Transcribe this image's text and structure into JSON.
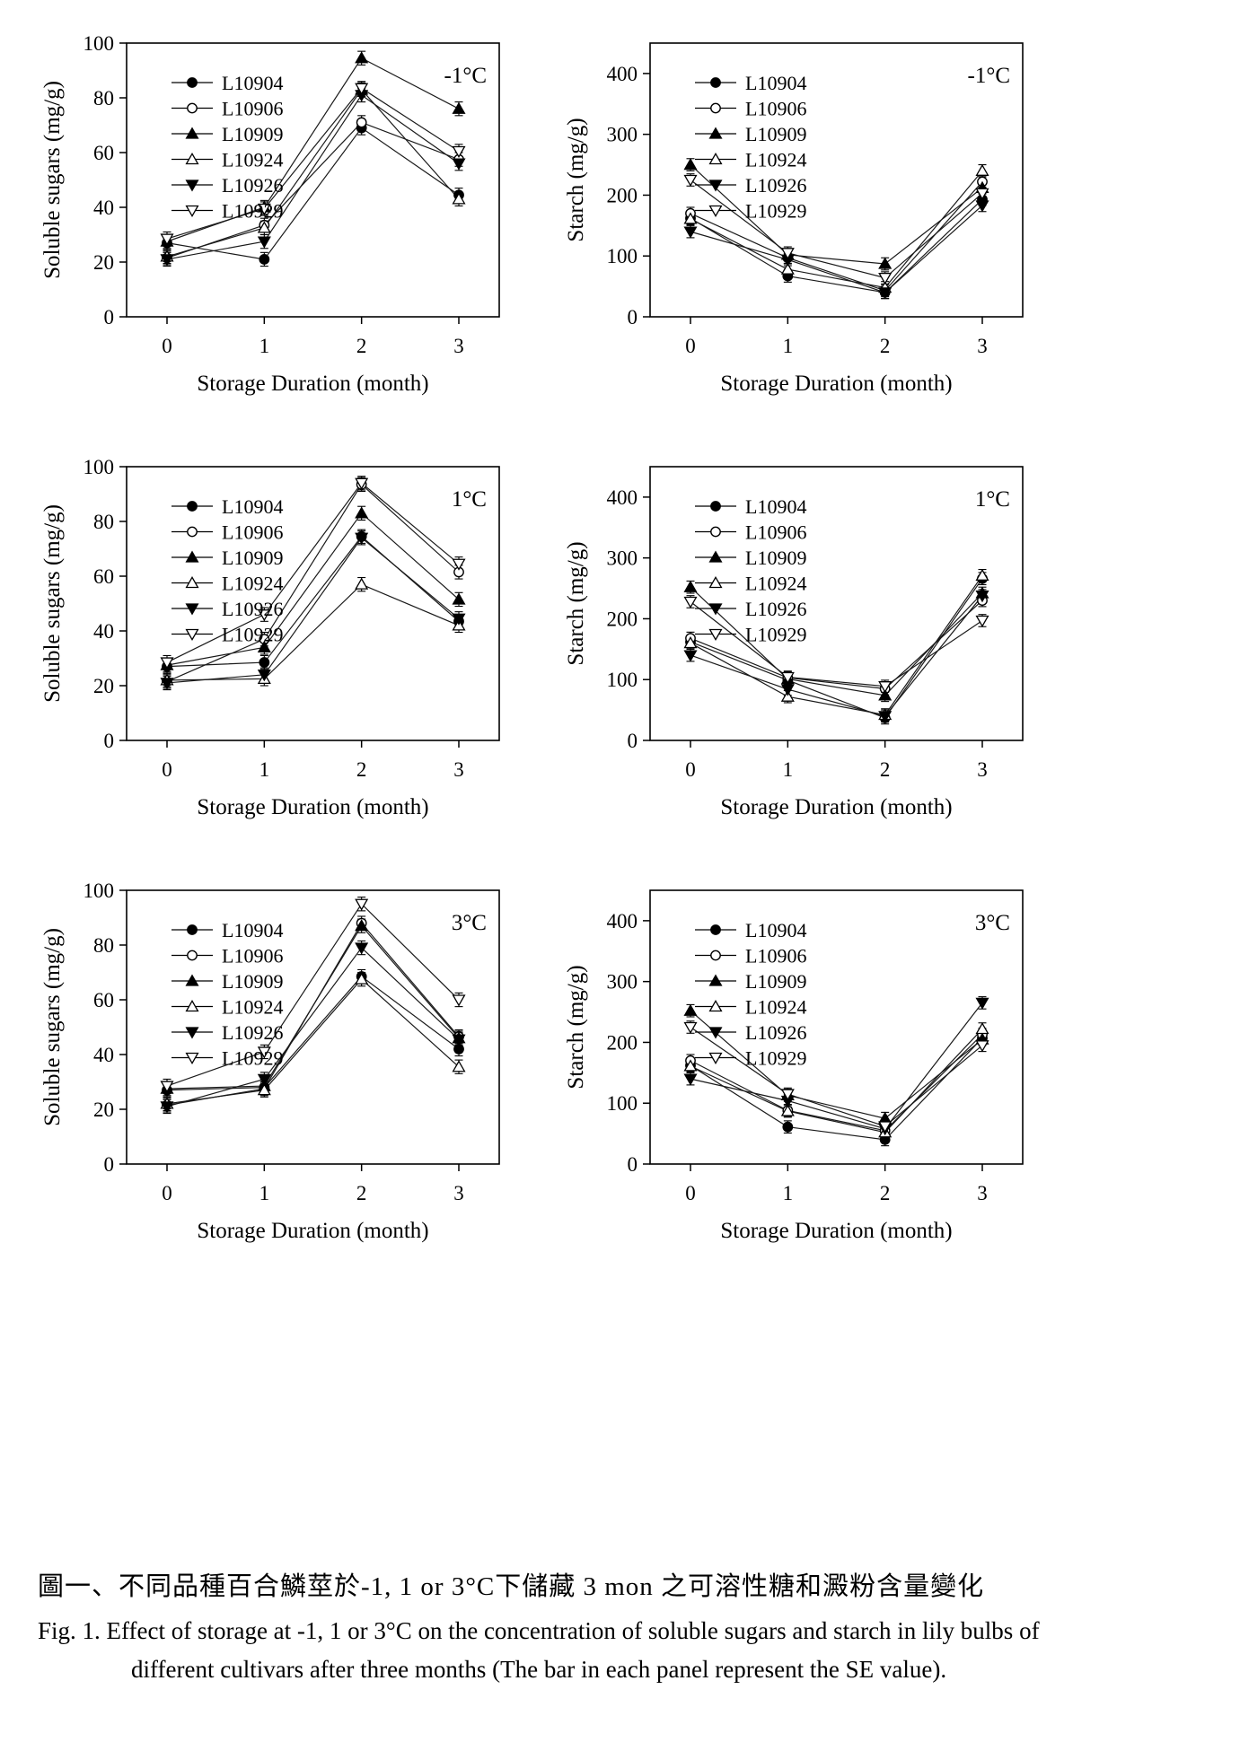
{
  "figure": {
    "caption_zh": "圖一、不同品種百合鱗莖於-1, 1 or 3°C下儲藏 3 mon 之可溶性糖和澱粉含量變化",
    "caption_en_line1": "Fig. 1. Effect of storage at -1, 1 or 3°C on the concentration of soluble sugars and starch in lily bulbs of",
    "caption_en_line2": "different cultivars after three months (The bar in each panel represent the SE value)."
  },
  "chart_data": [
    {
      "type": "line",
      "temperature_label": "-1°C",
      "xlabel": "Storage Duration (month)",
      "ylabel": "Soluble sugars (mg/g)",
      "x": [
        0,
        1,
        2,
        3
      ],
      "ylim": [
        0,
        100
      ],
      "yticks": [
        0,
        20,
        40,
        60,
        80,
        100
      ],
      "se": 2.5,
      "grid": false,
      "legend_position": "upper-left",
      "series": [
        {
          "name": "L10904",
          "marker": "filled-circle",
          "values": [
            27,
            21,
            69,
            44.5
          ]
        },
        {
          "name": "L10906",
          "marker": "open-circle",
          "values": [
            21.5,
            33.5,
            71,
            57.5
          ]
        },
        {
          "name": "L10909",
          "marker": "filled-triangle-up",
          "values": [
            27.5,
            40,
            94.5,
            76
          ]
        },
        {
          "name": "L10924",
          "marker": "open-triangle-up",
          "values": [
            22,
            32.5,
            83,
            43
          ]
        },
        {
          "name": "L10926",
          "marker": "filled-triangle-down",
          "values": [
            21,
            27.5,
            81,
            56
          ]
        },
        {
          "name": "L10929",
          "marker": "open-triangle-down",
          "values": [
            28.5,
            39.5,
            83.5,
            60.5
          ]
        }
      ]
    },
    {
      "type": "line",
      "temperature_label": "-1°C",
      "xlabel": "Storage Duration (month)",
      "ylabel": "Starch (mg/g)",
      "x": [
        0,
        1,
        2,
        3
      ],
      "ylim": [
        0,
        450
      ],
      "yticks": [
        0,
        100,
        200,
        300,
        400
      ],
      "se": 10,
      "grid": false,
      "legend_position": "upper-left",
      "series": [
        {
          "name": "L10904",
          "marker": "filled-circle",
          "values": [
            162,
            67,
            40,
            193
          ]
        },
        {
          "name": "L10906",
          "marker": "open-circle",
          "values": [
            170,
            97,
            43,
            222
          ]
        },
        {
          "name": "L10909",
          "marker": "filled-triangle-up",
          "values": [
            250,
            102,
            87,
            212
          ]
        },
        {
          "name": "L10924",
          "marker": "open-triangle-up",
          "values": [
            161,
            78,
            48,
            240
          ]
        },
        {
          "name": "L10926",
          "marker": "filled-triangle-down",
          "values": [
            140,
            94,
            40,
            183
          ]
        },
        {
          "name": "L10929",
          "marker": "open-triangle-down",
          "values": [
            225,
            105,
            64,
            203
          ]
        }
      ]
    },
    {
      "type": "line",
      "temperature_label": "1°C",
      "xlabel": "Storage Duration (month)",
      "ylabel": "Soluble sugars (mg/g)",
      "x": [
        0,
        1,
        2,
        3
      ],
      "ylim": [
        0,
        100
      ],
      "yticks": [
        0,
        20,
        40,
        60,
        80,
        100
      ],
      "se": 2.5,
      "grid": false,
      "legend_position": "upper-left",
      "series": [
        {
          "name": "L10904",
          "marker": "filled-circle",
          "values": [
            27,
            28.5,
            74.5,
            43.5
          ]
        },
        {
          "name": "L10906",
          "marker": "open-circle",
          "values": [
            21.5,
            37,
            93.5,
            61.5
          ]
        },
        {
          "name": "L10909",
          "marker": "filled-triangle-up",
          "values": [
            27.5,
            34,
            83,
            51.5
          ]
        },
        {
          "name": "L10924",
          "marker": "open-triangle-up",
          "values": [
            22,
            22.5,
            57,
            42
          ]
        },
        {
          "name": "L10926",
          "marker": "filled-triangle-down",
          "values": [
            21,
            24,
            74,
            44.5
          ]
        },
        {
          "name": "L10929",
          "marker": "open-triangle-down",
          "values": [
            28.5,
            46,
            94,
            64.5
          ]
        }
      ]
    },
    {
      "type": "line",
      "temperature_label": "1°C",
      "xlabel": "Storage Duration (month)",
      "ylabel": "Starch (mg/g)",
      "x": [
        0,
        1,
        2,
        3
      ],
      "ylim": [
        0,
        450
      ],
      "yticks": [
        0,
        100,
        200,
        300,
        400
      ],
      "se": 10,
      "grid": false,
      "legend_position": "upper-left",
      "series": [
        {
          "name": "L10904",
          "marker": "filled-circle",
          "values": [
            162,
            99,
            37,
            266
          ]
        },
        {
          "name": "L10906",
          "marker": "open-circle",
          "values": [
            168,
            103,
            85,
            230
          ]
        },
        {
          "name": "L10909",
          "marker": "filled-triangle-up",
          "values": [
            252,
            101,
            74,
            242
          ]
        },
        {
          "name": "L10924",
          "marker": "open-triangle-up",
          "values": [
            160,
            72,
            42,
            271
          ]
        },
        {
          "name": "L10926",
          "marker": "filled-triangle-down",
          "values": [
            140,
            84,
            40,
            238
          ]
        },
        {
          "name": "L10929",
          "marker": "open-triangle-down",
          "values": [
            228,
            104,
            89,
            197
          ]
        }
      ]
    },
    {
      "type": "line",
      "temperature_label": "3°C",
      "xlabel": "Storage Duration (month)",
      "ylabel": "Soluble sugars (mg/g)",
      "x": [
        0,
        1,
        2,
        3
      ],
      "ylim": [
        0,
        100
      ],
      "yticks": [
        0,
        20,
        40,
        60,
        80,
        100
      ],
      "se": 2.5,
      "grid": false,
      "legend_position": "upper-left",
      "series": [
        {
          "name": "L10904",
          "marker": "filled-circle",
          "values": [
            27,
            28,
            68.5,
            42
          ]
        },
        {
          "name": "L10906",
          "marker": "open-circle",
          "values": [
            21.5,
            27.5,
            88,
            46.5
          ]
        },
        {
          "name": "L10909",
          "marker": "filled-triangle-up",
          "values": [
            27.5,
            28.5,
            87,
            46
          ]
        },
        {
          "name": "L10924",
          "marker": "open-triangle-up",
          "values": [
            22,
            27,
            67.5,
            35.5
          ]
        },
        {
          "name": "L10926",
          "marker": "filled-triangle-down",
          "values": [
            21,
            31,
            79,
            45.5
          ]
        },
        {
          "name": "L10929",
          "marker": "open-triangle-down",
          "values": [
            28.5,
            41,
            95,
            60
          ]
        }
      ]
    },
    {
      "type": "line",
      "temperature_label": "3°C",
      "xlabel": "Storage Duration (month)",
      "ylabel": "Starch (mg/g)",
      "x": [
        0,
        1,
        2,
        3
      ],
      "ylim": [
        0,
        450
      ],
      "yticks": [
        0,
        100,
        200,
        300,
        400
      ],
      "se": 10,
      "grid": false,
      "legend_position": "upper-left",
      "series": [
        {
          "name": "L10904",
          "marker": "filled-circle",
          "values": [
            162,
            61,
            40,
            207
          ]
        },
        {
          "name": "L10906",
          "marker": "open-circle",
          "values": [
            170,
            88,
            55,
            213
          ]
        },
        {
          "name": "L10909",
          "marker": "filled-triangle-up",
          "values": [
            252,
            113,
            75,
            205
          ]
        },
        {
          "name": "L10924",
          "marker": "open-triangle-up",
          "values": [
            161,
            87,
            52,
            222
          ]
        },
        {
          "name": "L10926",
          "marker": "filled-triangle-down",
          "values": [
            140,
            104,
            58,
            265
          ]
        },
        {
          "name": "L10929",
          "marker": "open-triangle-down",
          "values": [
            225,
            115,
            62,
            195
          ]
        }
      ]
    }
  ]
}
